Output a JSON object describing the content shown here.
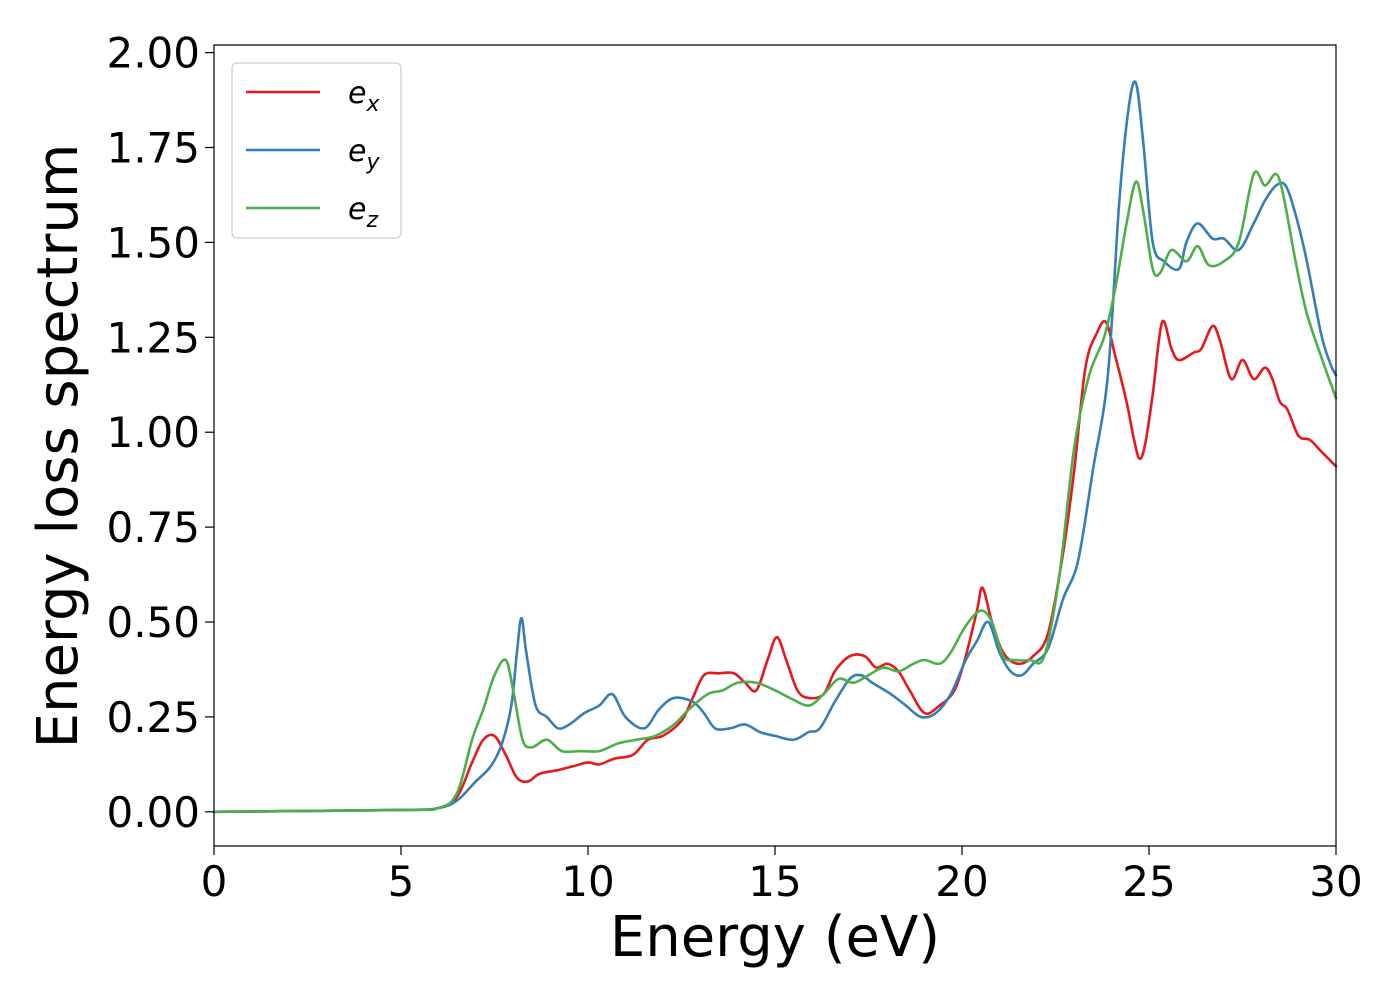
{
  "chart_data": {
    "type": "line",
    "xlabel": "Energy (eV)",
    "ylabel": "Energy loss spectrum",
    "xlim": [
      0,
      30
    ],
    "ylim": [
      -0.09,
      2.02
    ],
    "xticks": [
      0,
      5,
      10,
      15,
      20,
      25,
      30
    ],
    "xtick_labels": [
      "0",
      "5",
      "10",
      "15",
      "20",
      "25",
      "30"
    ],
    "yticks": [
      0.0,
      0.25,
      0.5,
      0.75,
      1.0,
      1.25,
      1.5,
      1.75,
      2.0
    ],
    "ytick_labels": [
      "0.00",
      "0.25",
      "0.50",
      "0.75",
      "1.00",
      "1.25",
      "1.50",
      "1.75",
      "2.00"
    ],
    "grid": false,
    "legend_position": "top-left",
    "series": [
      {
        "name": "e",
        "subscript": "x",
        "color": "#e41a1c",
        "points": [
          [
            0,
            0
          ],
          [
            5,
            0.005
          ],
          [
            6,
            0.01
          ],
          [
            6.5,
            0.04
          ],
          [
            6.9,
            0.13
          ],
          [
            7.2,
            0.19
          ],
          [
            7.5,
            0.2
          ],
          [
            7.8,
            0.15
          ],
          [
            8.1,
            0.09
          ],
          [
            8.4,
            0.08
          ],
          [
            8.7,
            0.1
          ],
          [
            9.2,
            0.11
          ],
          [
            9.6,
            0.12
          ],
          [
            10.0,
            0.13
          ],
          [
            10.3,
            0.125
          ],
          [
            10.7,
            0.14
          ],
          [
            11.2,
            0.15
          ],
          [
            11.6,
            0.19
          ],
          [
            12.0,
            0.2
          ],
          [
            12.5,
            0.24
          ],
          [
            12.8,
            0.3
          ],
          [
            13.1,
            0.36
          ],
          [
            13.5,
            0.365
          ],
          [
            13.9,
            0.365
          ],
          [
            14.2,
            0.34
          ],
          [
            14.5,
            0.32
          ],
          [
            14.8,
            0.4
          ],
          [
            15.05,
            0.46
          ],
          [
            15.3,
            0.4
          ],
          [
            15.6,
            0.32
          ],
          [
            15.9,
            0.3
          ],
          [
            16.3,
            0.31
          ],
          [
            16.6,
            0.37
          ],
          [
            17.0,
            0.41
          ],
          [
            17.4,
            0.41
          ],
          [
            17.7,
            0.38
          ],
          [
            18.0,
            0.39
          ],
          [
            18.3,
            0.37
          ],
          [
            18.6,
            0.32
          ],
          [
            19.0,
            0.26
          ],
          [
            19.4,
            0.28
          ],
          [
            19.8,
            0.32
          ],
          [
            20.1,
            0.41
          ],
          [
            20.4,
            0.53
          ],
          [
            20.55,
            0.59
          ],
          [
            20.8,
            0.5
          ],
          [
            21.1,
            0.42
          ],
          [
            21.5,
            0.39
          ],
          [
            21.9,
            0.41
          ],
          [
            22.3,
            0.47
          ],
          [
            22.7,
            0.68
          ],
          [
            23.0,
            0.9
          ],
          [
            23.3,
            1.17
          ],
          [
            23.6,
            1.26
          ],
          [
            23.85,
            1.29
          ],
          [
            24.1,
            1.2
          ],
          [
            24.4,
            1.08
          ],
          [
            24.6,
            0.98
          ],
          [
            24.75,
            0.93
          ],
          [
            24.9,
            0.97
          ],
          [
            25.1,
            1.1
          ],
          [
            25.35,
            1.29
          ],
          [
            25.6,
            1.22
          ],
          [
            25.8,
            1.19
          ],
          [
            26.2,
            1.21
          ],
          [
            26.4,
            1.22
          ],
          [
            26.7,
            1.28
          ],
          [
            26.9,
            1.24
          ],
          [
            27.2,
            1.14
          ],
          [
            27.5,
            1.19
          ],
          [
            27.8,
            1.14
          ],
          [
            28.1,
            1.17
          ],
          [
            28.3,
            1.14
          ],
          [
            28.5,
            1.08
          ],
          [
            28.7,
            1.06
          ],
          [
            29.0,
            0.99
          ],
          [
            29.3,
            0.98
          ],
          [
            29.6,
            0.95
          ],
          [
            30.0,
            0.91
          ]
        ]
      },
      {
        "name": "e",
        "subscript": "y",
        "color": "#377eb8",
        "points": [
          [
            0,
            0
          ],
          [
            5,
            0.005
          ],
          [
            6,
            0.01
          ],
          [
            6.5,
            0.03
          ],
          [
            7.0,
            0.08
          ],
          [
            7.4,
            0.12
          ],
          [
            7.7,
            0.18
          ],
          [
            7.95,
            0.28
          ],
          [
            8.1,
            0.42
          ],
          [
            8.22,
            0.51
          ],
          [
            8.35,
            0.42
          ],
          [
            8.6,
            0.28
          ],
          [
            8.9,
            0.25
          ],
          [
            9.2,
            0.22
          ],
          [
            9.5,
            0.23
          ],
          [
            9.9,
            0.26
          ],
          [
            10.3,
            0.28
          ],
          [
            10.65,
            0.31
          ],
          [
            11.0,
            0.25
          ],
          [
            11.5,
            0.22
          ],
          [
            11.9,
            0.27
          ],
          [
            12.3,
            0.3
          ],
          [
            12.8,
            0.29
          ],
          [
            13.1,
            0.26
          ],
          [
            13.4,
            0.22
          ],
          [
            13.8,
            0.22
          ],
          [
            14.2,
            0.23
          ],
          [
            14.6,
            0.21
          ],
          [
            15.0,
            0.2
          ],
          [
            15.5,
            0.19
          ],
          [
            15.9,
            0.21
          ],
          [
            16.2,
            0.22
          ],
          [
            16.6,
            0.29
          ],
          [
            17.0,
            0.35
          ],
          [
            17.3,
            0.36
          ],
          [
            17.6,
            0.34
          ],
          [
            18.1,
            0.31
          ],
          [
            18.5,
            0.28
          ],
          [
            18.9,
            0.25
          ],
          [
            19.3,
            0.26
          ],
          [
            19.7,
            0.31
          ],
          [
            20.1,
            0.4
          ],
          [
            20.4,
            0.45
          ],
          [
            20.7,
            0.5
          ],
          [
            21.0,
            0.42
          ],
          [
            21.3,
            0.37
          ],
          [
            21.6,
            0.36
          ],
          [
            21.9,
            0.39
          ],
          [
            22.3,
            0.43
          ],
          [
            22.7,
            0.56
          ],
          [
            23.1,
            0.66
          ],
          [
            23.5,
            0.9
          ],
          [
            23.9,
            1.15
          ],
          [
            24.2,
            1.6
          ],
          [
            24.45,
            1.85
          ],
          [
            24.65,
            1.92
          ],
          [
            24.85,
            1.76
          ],
          [
            25.1,
            1.5
          ],
          [
            25.4,
            1.45
          ],
          [
            25.8,
            1.43
          ],
          [
            26.0,
            1.5
          ],
          [
            26.3,
            1.55
          ],
          [
            26.7,
            1.51
          ],
          [
            27.0,
            1.51
          ],
          [
            27.4,
            1.48
          ],
          [
            27.8,
            1.55
          ],
          [
            28.1,
            1.61
          ],
          [
            28.4,
            1.65
          ],
          [
            28.65,
            1.65
          ],
          [
            28.9,
            1.58
          ],
          [
            29.2,
            1.46
          ],
          [
            29.6,
            1.26
          ],
          [
            29.85,
            1.18
          ],
          [
            30.0,
            1.15
          ]
        ]
      },
      {
        "name": "e",
        "subscript": "z",
        "color": "#4daf4a",
        "points": [
          [
            0,
            0
          ],
          [
            5,
            0.005
          ],
          [
            6,
            0.01
          ],
          [
            6.5,
            0.05
          ],
          [
            6.9,
            0.19
          ],
          [
            7.2,
            0.27
          ],
          [
            7.5,
            0.36
          ],
          [
            7.8,
            0.4
          ],
          [
            8.0,
            0.32
          ],
          [
            8.25,
            0.19
          ],
          [
            8.5,
            0.17
          ],
          [
            8.9,
            0.19
          ],
          [
            9.3,
            0.16
          ],
          [
            9.8,
            0.16
          ],
          [
            10.3,
            0.16
          ],
          [
            10.8,
            0.18
          ],
          [
            11.3,
            0.19
          ],
          [
            11.8,
            0.2
          ],
          [
            12.3,
            0.23
          ],
          [
            12.7,
            0.27
          ],
          [
            13.2,
            0.31
          ],
          [
            13.6,
            0.32
          ],
          [
            14.0,
            0.34
          ],
          [
            14.5,
            0.34
          ],
          [
            15.0,
            0.32
          ],
          [
            15.4,
            0.3
          ],
          [
            15.9,
            0.28
          ],
          [
            16.3,
            0.31
          ],
          [
            16.7,
            0.35
          ],
          [
            17.1,
            0.34
          ],
          [
            17.5,
            0.36
          ],
          [
            17.9,
            0.38
          ],
          [
            18.3,
            0.37
          ],
          [
            18.7,
            0.39
          ],
          [
            19.0,
            0.4
          ],
          [
            19.4,
            0.39
          ],
          [
            19.7,
            0.42
          ],
          [
            20.1,
            0.49
          ],
          [
            20.5,
            0.53
          ],
          [
            20.8,
            0.5
          ],
          [
            21.1,
            0.41
          ],
          [
            21.4,
            0.4
          ],
          [
            21.8,
            0.4
          ],
          [
            22.2,
            0.41
          ],
          [
            22.6,
            0.62
          ],
          [
            23.0,
            0.96
          ],
          [
            23.4,
            1.15
          ],
          [
            23.8,
            1.25
          ],
          [
            24.1,
            1.38
          ],
          [
            24.4,
            1.55
          ],
          [
            24.65,
            1.66
          ],
          [
            24.85,
            1.58
          ],
          [
            25.1,
            1.43
          ],
          [
            25.3,
            1.42
          ],
          [
            25.6,
            1.48
          ],
          [
            26.0,
            1.45
          ],
          [
            26.3,
            1.49
          ],
          [
            26.6,
            1.44
          ],
          [
            27.0,
            1.45
          ],
          [
            27.4,
            1.5
          ],
          [
            27.8,
            1.68
          ],
          [
            28.1,
            1.65
          ],
          [
            28.4,
            1.68
          ],
          [
            28.6,
            1.62
          ],
          [
            28.9,
            1.46
          ],
          [
            29.2,
            1.32
          ],
          [
            29.6,
            1.2
          ],
          [
            30.0,
            1.09
          ]
        ]
      }
    ]
  }
}
